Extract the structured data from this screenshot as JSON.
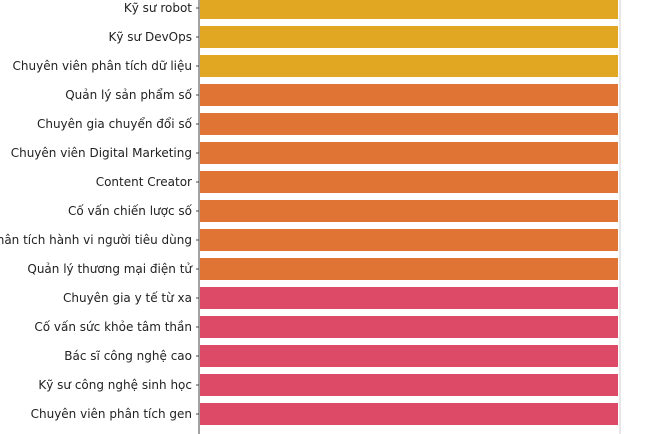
{
  "chart_data": {
    "type": "bar",
    "orientation": "horizontal",
    "categories": [
      "Kỹ sư robot",
      "Kỹ sư DevOps",
      "Chuyên viên phân tích dữ liệu",
      "Quản lý sản phẩm số",
      "Chuyên gia chuyển đổi số",
      "Chuyên viên Digital Marketing",
      "Content Creator",
      "Cố vấn chiến lược số",
      "Phân tích hành vi người tiêu dùng",
      "Quản lý thương mại điện tử",
      "Chuyên gia y tế từ xa",
      "Cố vấn sức khỏe tâm thần",
      "Bác sĩ công nghệ cao",
      "Kỹ sư công nghệ sinh học",
      "Chuyên viên phân tích gen"
    ],
    "values": [
      1,
      1,
      1,
      1,
      1,
      1,
      1,
      1,
      1,
      1,
      1,
      1,
      1,
      1,
      1
    ],
    "bar_colors": [
      "#e2a722",
      "#e2a722",
      "#e2a722",
      "#df7434",
      "#df7434",
      "#df7434",
      "#df7434",
      "#df7434",
      "#df7434",
      "#df7434",
      "#dc4a68",
      "#dc4a68",
      "#dc4a68",
      "#dc4a68",
      "#dc4a68"
    ],
    "xlim": [
      0,
      1
    ],
    "grid": false
  }
}
